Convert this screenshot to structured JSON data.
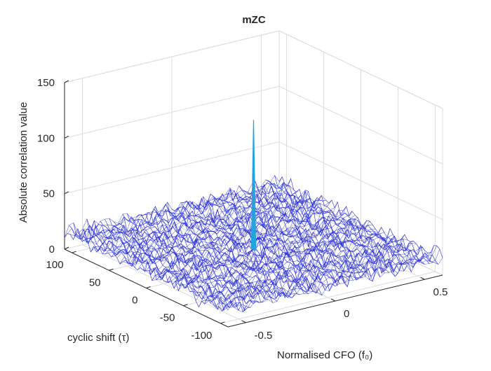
{
  "chart_data": {
    "type": "surface",
    "title": "mZC",
    "xlabel": "cyclic shift (τ)",
    "ylabel": "Normalised CFO (f₀)",
    "zlabel": "Absolute correlation value",
    "x_ticks": [
      "100",
      "50",
      "0",
      "-50",
      "-100"
    ],
    "y_ticks": [
      "-0.5",
      "0",
      "0.5"
    ],
    "z_ticks": [
      "0",
      "50",
      "100",
      "150"
    ],
    "xlim": [
      -110,
      110
    ],
    "ylim": [
      -0.6,
      0.6
    ],
    "zlim": [
      0,
      150
    ],
    "grid": true,
    "mesh_color": "#2a2fd6",
    "peak": {
      "x": 0,
      "y": 0,
      "z": 128,
      "color": "#26a3dc"
    },
    "noise_floor_range": [
      0,
      25
    ]
  }
}
